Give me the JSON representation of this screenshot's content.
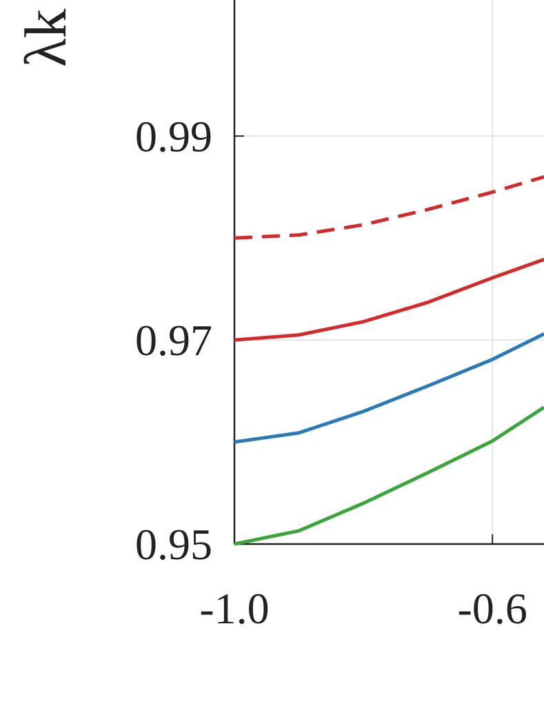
{
  "chart_data": {
    "type": "line",
    "y_label": "λk",
    "x": [
      -1.0,
      -0.9,
      -0.8,
      -0.7,
      -0.6,
      -0.52
    ],
    "series": [
      {
        "color": "#d42a2a",
        "dash": true,
        "values": [
          0.98,
          0.9803,
          0.9813,
          0.9828,
          0.9845,
          0.986
        ]
      },
      {
        "color": "#d42a2a",
        "dash": false,
        "values": [
          0.97,
          0.9705,
          0.9718,
          0.9737,
          0.9761,
          0.9779
        ]
      },
      {
        "color": "#2a7ab8",
        "dash": false,
        "values": [
          0.96,
          0.9609,
          0.963,
          0.9655,
          0.9681,
          0.9706
        ]
      },
      {
        "color": "#3aa53a",
        "dash": false,
        "values": [
          0.95,
          0.9513,
          0.954,
          0.957,
          0.9601,
          0.9634
        ]
      }
    ],
    "xlim": [
      -1.0,
      -0.52
    ],
    "ylim": [
      0.95,
      1.003
    ],
    "xticks": [
      {
        "value": -1.0,
        "label": "-1.0"
      },
      {
        "value": -0.6,
        "label": "-0.6"
      }
    ],
    "yticks": [
      0.95,
      0.97,
      0.99
    ],
    "grid": true
  }
}
